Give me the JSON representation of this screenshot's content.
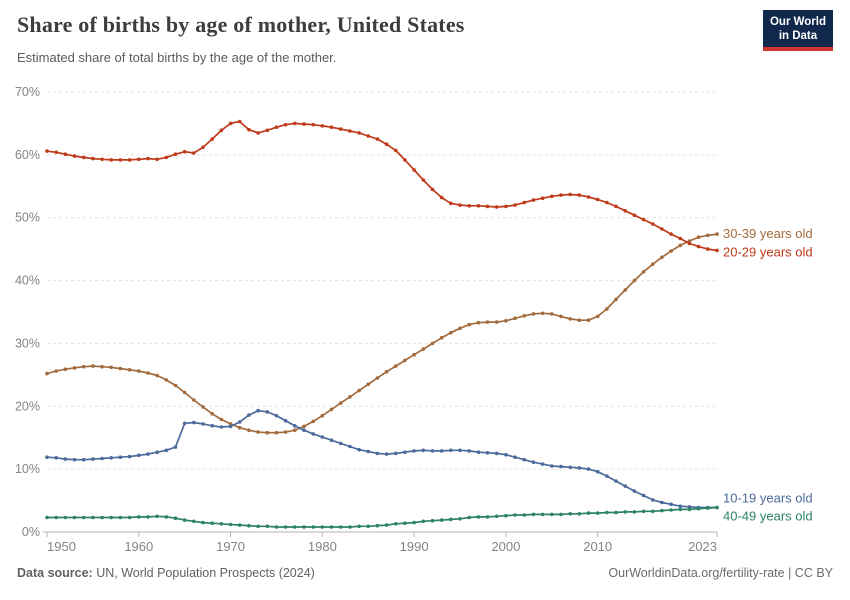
{
  "header": {
    "title": "Share of births by age of mother, United States",
    "subtitle": "Estimated share of total births by the age of the mother.",
    "logo": {
      "line1": "Our World",
      "line2": "in Data",
      "bg_color": "#10284B",
      "accent_color": "#CE342B"
    }
  },
  "footer": {
    "source_label": "Data source:",
    "source_value": " UN, World Population Prospects (2024)",
    "right_text": "OurWorldinData.org/fertility-rate | CC BY"
  },
  "chart_data": {
    "type": "line",
    "title": "Share of births by age of mother, United States",
    "subtitle": "Estimated share of total births by the age of the mother.",
    "xlabel": "",
    "ylabel": "",
    "xlim": [
      1950,
      2023
    ],
    "ylim": [
      0,
      70
    ],
    "x_ticks": [
      1950,
      1960,
      1970,
      1980,
      1990,
      2000,
      2010,
      2023
    ],
    "y_ticks": [
      0,
      10,
      20,
      30,
      40,
      50,
      60,
      70
    ],
    "y_tick_suffix": "%",
    "grid": "horizontal-dashed",
    "legend_position": "line-end-labels-right",
    "marker": "dot-every-year",
    "x": [
      1950,
      1951,
      1952,
      1953,
      1954,
      1955,
      1956,
      1957,
      1958,
      1959,
      1960,
      1961,
      1962,
      1963,
      1964,
      1965,
      1966,
      1967,
      1968,
      1969,
      1970,
      1971,
      1972,
      1973,
      1974,
      1975,
      1976,
      1977,
      1978,
      1979,
      1980,
      1981,
      1982,
      1983,
      1984,
      1985,
      1986,
      1987,
      1988,
      1989,
      1990,
      1991,
      1992,
      1993,
      1994,
      1995,
      1996,
      1997,
      1998,
      1999,
      2000,
      2001,
      2002,
      2003,
      2004,
      2005,
      2006,
      2007,
      2008,
      2009,
      2010,
      2011,
      2012,
      2013,
      2014,
      2015,
      2016,
      2017,
      2018,
      2019,
      2020,
      2021,
      2022,
      2023
    ],
    "series": [
      {
        "name": "30-39 years old",
        "color": "#A26B3E",
        "label_dy": 0,
        "values": [
          25.2,
          25.6,
          25.9,
          26.1,
          26.3,
          26.4,
          26.3,
          26.2,
          26.0,
          25.8,
          25.6,
          25.3,
          24.9,
          24.2,
          23.3,
          22.2,
          21.0,
          19.9,
          18.8,
          17.9,
          17.2,
          16.6,
          16.2,
          15.9,
          15.8,
          15.8,
          15.9,
          16.2,
          16.8,
          17.6,
          18.5,
          19.5,
          20.5,
          21.5,
          22.5,
          23.5,
          24.5,
          25.5,
          26.4,
          27.3,
          28.2,
          29.1,
          30.0,
          30.9,
          31.7,
          32.4,
          33.0,
          33.3,
          33.4,
          33.4,
          33.6,
          34.0,
          34.4,
          34.7,
          34.8,
          34.7,
          34.3,
          33.9,
          33.7,
          33.7,
          34.3,
          35.5,
          37.0,
          38.5,
          40.0,
          41.4,
          42.6,
          43.7,
          44.7,
          45.6,
          46.3,
          46.9,
          47.2,
          47.4
        ]
      },
      {
        "name": "20-29 years old",
        "color": "#BE3A19",
        "label_dy": 2,
        "values": [
          60.6,
          60.4,
          60.1,
          59.8,
          59.6,
          59.4,
          59.3,
          59.2,
          59.2,
          59.2,
          59.3,
          59.4,
          59.3,
          59.6,
          60.1,
          60.5,
          60.3,
          61.2,
          62.5,
          63.9,
          65.0,
          65.3,
          64.0,
          63.5,
          63.9,
          64.4,
          64.8,
          65.0,
          64.9,
          64.8,
          64.6,
          64.4,
          64.1,
          63.8,
          63.5,
          63.0,
          62.5,
          61.7,
          60.7,
          59.2,
          57.6,
          56.0,
          54.5,
          53.2,
          52.3,
          52.0,
          51.9,
          51.9,
          51.8,
          51.7,
          51.8,
          52.0,
          52.4,
          52.8,
          53.1,
          53.4,
          53.6,
          53.7,
          53.6,
          53.3,
          52.9,
          52.4,
          51.8,
          51.1,
          50.4,
          49.7,
          49.0,
          48.2,
          47.4,
          46.7,
          45.9,
          45.4,
          45.0,
          44.8
        ]
      },
      {
        "name": "10-19 years old",
        "color": "#4C6A9C",
        "label_dy": -9,
        "values": [
          11.9,
          11.8,
          11.6,
          11.5,
          11.5,
          11.6,
          11.7,
          11.8,
          11.9,
          12.0,
          12.2,
          12.4,
          12.7,
          13.0,
          13.5,
          17.3,
          17.4,
          17.2,
          16.9,
          16.7,
          16.8,
          17.5,
          18.6,
          19.3,
          19.1,
          18.5,
          17.7,
          16.9,
          16.2,
          15.6,
          15.1,
          14.6,
          14.1,
          13.6,
          13.1,
          12.8,
          12.5,
          12.4,
          12.5,
          12.7,
          12.9,
          13.0,
          12.9,
          12.9,
          13.0,
          13.0,
          12.9,
          12.7,
          12.6,
          12.5,
          12.3,
          11.9,
          11.5,
          11.1,
          10.8,
          10.5,
          10.4,
          10.3,
          10.2,
          10.0,
          9.6,
          8.9,
          8.1,
          7.3,
          6.5,
          5.8,
          5.1,
          4.7,
          4.4,
          4.1,
          4.0,
          3.9,
          3.9,
          3.9
        ]
      },
      {
        "name": "40-49 years old",
        "color": "#2C8465",
        "label_dy": 9,
        "values": [
          2.3,
          2.3,
          2.3,
          2.3,
          2.3,
          2.3,
          2.3,
          2.3,
          2.3,
          2.3,
          2.4,
          2.4,
          2.5,
          2.4,
          2.2,
          1.9,
          1.7,
          1.5,
          1.4,
          1.3,
          1.2,
          1.1,
          1.0,
          0.9,
          0.9,
          0.8,
          0.8,
          0.8,
          0.8,
          0.8,
          0.8,
          0.8,
          0.8,
          0.8,
          0.9,
          0.9,
          1.0,
          1.1,
          1.3,
          1.4,
          1.5,
          1.7,
          1.8,
          1.9,
          2.0,
          2.1,
          2.3,
          2.4,
          2.4,
          2.5,
          2.6,
          2.7,
          2.7,
          2.8,
          2.8,
          2.8,
          2.8,
          2.9,
          2.9,
          3.0,
          3.0,
          3.1,
          3.1,
          3.2,
          3.2,
          3.3,
          3.3,
          3.4,
          3.5,
          3.6,
          3.6,
          3.7,
          3.8,
          3.9
        ]
      }
    ]
  },
  "style": {
    "grid_color": "#E2E2E2",
    "axis_color": "#B3B3B3",
    "tick_label_color": "#848484"
  }
}
